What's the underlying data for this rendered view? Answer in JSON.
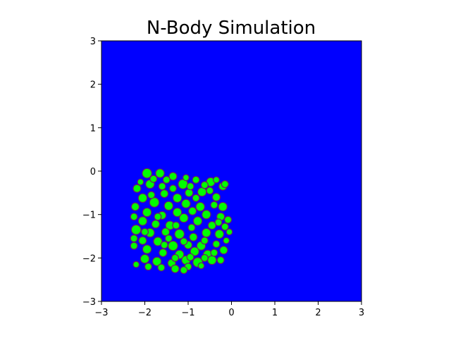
{
  "chart_data": {
    "type": "scatter",
    "title": "N-Body Simulation",
    "xlabel": "",
    "ylabel": "",
    "xlim": [
      -3,
      3
    ],
    "ylim": [
      -3,
      3
    ],
    "x_ticks": [
      -3,
      -2,
      -1,
      0,
      1,
      2,
      3
    ],
    "y_ticks": [
      -3,
      -2,
      -1,
      0,
      1,
      2,
      3
    ],
    "x_tick_labels": [
      "−3",
      "−2",
      "−1",
      "0",
      "1",
      "2",
      "3"
    ],
    "y_tick_labels": [
      "−3",
      "−2",
      "−1",
      "0",
      "1",
      "2",
      "3"
    ],
    "grid": false,
    "legend": "none",
    "colors": {
      "background": "#0000ff",
      "marker_fill": "#00ff00",
      "marker_edge": "#6a1b6a",
      "axes": "#000000"
    },
    "series": [
      {
        "points": [
          [
            -1.95,
            -0.05,
            0.11
          ],
          [
            -1.65,
            -0.05,
            0.1
          ],
          [
            -1.35,
            -0.12,
            0.09
          ],
          [
            -1.12,
            -0.3,
            0.11
          ],
          [
            -0.82,
            -0.2,
            0.08
          ],
          [
            -0.48,
            -0.25,
            0.1
          ],
          [
            -0.2,
            -0.35,
            0.09
          ],
          [
            -2.18,
            -0.4,
            0.09
          ],
          [
            -1.88,
            -0.3,
            0.1
          ],
          [
            -1.55,
            -0.52,
            0.09
          ],
          [
            -1.25,
            -0.62,
            0.1
          ],
          [
            -0.98,
            -0.5,
            0.09
          ],
          [
            -0.68,
            -0.48,
            0.1
          ],
          [
            -0.35,
            -0.6,
            0.09
          ],
          [
            -2.05,
            -0.62,
            0.1
          ],
          [
            -1.78,
            -0.72,
            0.11
          ],
          [
            -1.45,
            -0.8,
            0.1
          ],
          [
            -1.05,
            -0.75,
            0.1
          ],
          [
            -0.72,
            -0.82,
            0.1
          ],
          [
            -0.2,
            -0.82,
            0.1
          ],
          [
            -0.4,
            -0.78,
            0.08
          ],
          [
            -2.22,
            -0.82,
            0.09
          ],
          [
            -1.95,
            -0.95,
            0.1
          ],
          [
            -1.6,
            -1.02,
            0.09
          ],
          [
            -1.25,
            -0.95,
            0.1
          ],
          [
            -0.9,
            -0.92,
            0.09
          ],
          [
            -0.58,
            -1.0,
            0.1
          ],
          [
            -0.25,
            -1.05,
            0.09
          ],
          [
            -2.05,
            -1.15,
            0.1
          ],
          [
            -1.75,
            -1.22,
            0.09
          ],
          [
            -1.42,
            -1.25,
            0.1
          ],
          [
            -1.1,
            -1.08,
            0.1
          ],
          [
            -0.78,
            -1.15,
            0.1
          ],
          [
            -0.45,
            -1.25,
            0.09
          ],
          [
            -0.15,
            -1.28,
            0.08
          ],
          [
            -2.2,
            -1.35,
            0.11
          ],
          [
            -1.88,
            -1.42,
            0.1
          ],
          [
            -1.52,
            -1.4,
            0.09
          ],
          [
            -1.2,
            -1.45,
            0.11
          ],
          [
            -0.88,
            -1.52,
            0.09
          ],
          [
            -0.58,
            -1.42,
            0.1
          ],
          [
            -0.28,
            -1.45,
            0.1
          ],
          [
            -2.05,
            -1.6,
            0.09
          ],
          [
            -1.7,
            -1.62,
            0.1
          ],
          [
            -1.35,
            -1.72,
            0.11
          ],
          [
            -1.0,
            -1.7,
            0.09
          ],
          [
            -0.7,
            -1.72,
            0.1
          ],
          [
            -0.35,
            -1.68,
            0.08
          ],
          [
            -2.25,
            -1.72,
            0.08
          ],
          [
            -1.95,
            -1.8,
            0.1
          ],
          [
            -1.58,
            -1.88,
            0.09
          ],
          [
            -1.2,
            -1.92,
            0.1
          ],
          [
            -0.85,
            -1.85,
            0.1
          ],
          [
            -0.55,
            -1.92,
            0.1
          ],
          [
            -0.18,
            -1.82,
            0.09
          ],
          [
            -2.0,
            -2.02,
            0.1
          ],
          [
            -1.72,
            -2.08,
            0.1
          ],
          [
            -1.38,
            -2.12,
            0.09
          ],
          [
            -1.05,
            -2.05,
            0.1
          ],
          [
            -0.78,
            -2.1,
            0.11
          ],
          [
            -0.45,
            -2.05,
            0.1
          ],
          [
            -0.25,
            -2.05,
            0.08
          ],
          [
            -2.2,
            -2.15,
            0.07
          ],
          [
            -1.92,
            -2.2,
            0.08
          ],
          [
            -1.62,
            -2.22,
            0.08
          ],
          [
            -1.3,
            -2.25,
            0.09
          ],
          [
            -1.0,
            -2.2,
            0.08
          ],
          [
            -0.7,
            -2.18,
            0.07
          ],
          [
            -1.1,
            -2.28,
            0.08
          ],
          [
            -0.15,
            -0.3,
            0.08
          ],
          [
            -0.35,
            -0.2,
            0.07
          ],
          [
            -1.8,
            -0.18,
            0.08
          ],
          [
            -2.1,
            -0.25,
            0.07
          ],
          [
            -1.5,
            -0.2,
            0.08
          ],
          [
            -1.05,
            -0.15,
            0.07
          ],
          [
            -0.62,
            -0.32,
            0.08
          ],
          [
            -0.08,
            -1.12,
            0.08
          ],
          [
            -0.05,
            -1.4,
            0.07
          ],
          [
            -0.12,
            -1.6,
            0.07
          ],
          [
            -2.25,
            -1.05,
            0.08
          ],
          [
            -2.25,
            -1.55,
            0.08
          ],
          [
            -1.6,
            -0.35,
            0.08
          ],
          [
            -1.35,
            -0.4,
            0.08
          ],
          [
            -0.95,
            -0.35,
            0.08
          ],
          [
            -1.7,
            -1.05,
            0.08
          ],
          [
            -1.28,
            -1.25,
            0.08
          ],
          [
            -0.92,
            -1.3,
            0.08
          ],
          [
            -0.62,
            -1.6,
            0.08
          ],
          [
            -1.45,
            -1.55,
            0.08
          ],
          [
            -1.1,
            -1.62,
            0.08
          ],
          [
            -0.82,
            -0.62,
            0.08
          ],
          [
            -0.5,
            -0.45,
            0.08
          ],
          [
            -1.85,
            -0.55,
            0.08
          ],
          [
            -2.0,
            -1.4,
            0.08
          ],
          [
            -1.55,
            -1.7,
            0.08
          ],
          [
            -0.3,
            -1.18,
            0.08
          ],
          [
            -1.3,
            -2.0,
            0.08
          ],
          [
            -0.95,
            -1.98,
            0.08
          ],
          [
            -0.62,
            -2.0,
            0.08
          ],
          [
            -0.4,
            -1.88,
            0.08
          ]
        ]
      }
    ]
  }
}
